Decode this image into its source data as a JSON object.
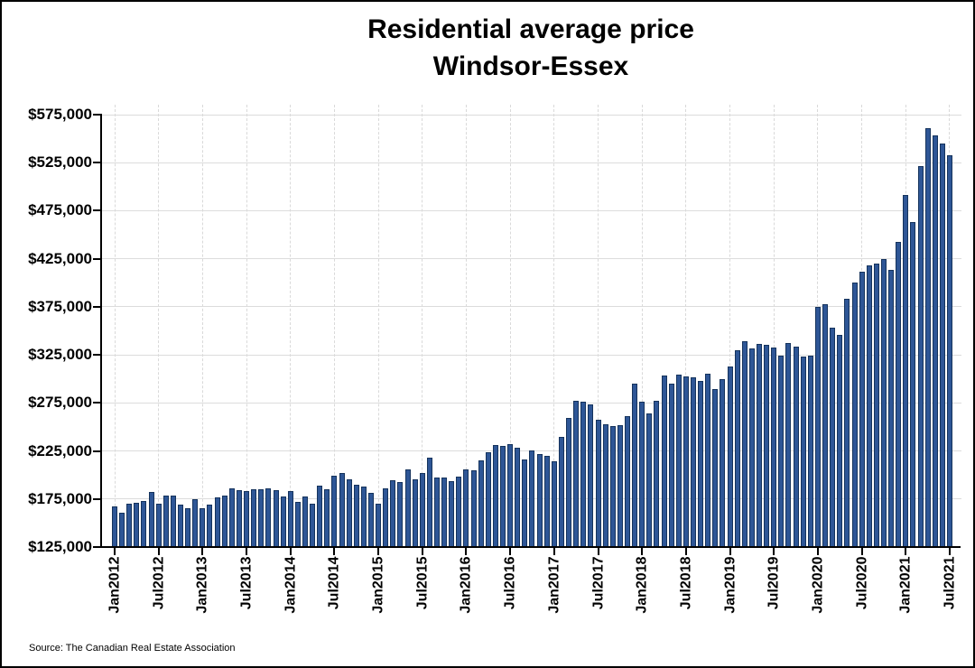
{
  "title": {
    "line1": "Residential average price",
    "line2": "Windsor-Essex"
  },
  "source_text": "Source: The Canadian Real Estate Association",
  "colors": {
    "bar_fill": "#2e5696",
    "bar_border": "#15335c",
    "gridline": "#d9d9d9",
    "axis": "#000000",
    "background": "#ffffff"
  },
  "chart_data": {
    "type": "bar",
    "title": "Residential average price Windsor-Essex",
    "xlabel": "",
    "ylabel": "",
    "x_start": "Jan 2012",
    "x_end": "Jul 2021",
    "x_frequency": "monthly",
    "x_tick_interval_months": 6,
    "x_tick_labels": [
      "Jan2012",
      "Jul2012",
      "Jan2013",
      "Jul2013",
      "Jan2014",
      "Jul2014",
      "Jan2015",
      "Jul2015",
      "Jan2016",
      "Jul2016",
      "Jan2017",
      "Jul2017",
      "Jan2018",
      "Jul2018",
      "Jan2019",
      "Jul2019",
      "Jan2020",
      "Jul2020",
      "Jan2021",
      "Jul2021"
    ],
    "y_tick_labels": [
      "$125,000",
      "$175,000",
      "$225,000",
      "$275,000",
      "$325,000",
      "$375,000",
      "$425,000",
      "$475,000",
      "$525,000",
      "$575,000"
    ],
    "ylim": [
      125000,
      575000
    ],
    "y_tick_step": 50000,
    "grid": true,
    "legend": false,
    "series": [
      {
        "name": "Residential average price",
        "values": [
          167000,
          161000,
          170000,
          171000,
          173000,
          182000,
          170500,
          178500,
          178500,
          169500,
          165000,
          174500,
          165500,
          169500,
          176500,
          178500,
          186000,
          184500,
          183500,
          185500,
          185500,
          186500,
          184500,
          177500,
          183500,
          172000,
          178000,
          170500,
          189000,
          185500,
          199500,
          202000,
          195000,
          190000,
          187500,
          181000,
          170000,
          186500,
          194500,
          193000,
          206000,
          195000,
          202000,
          218000,
          197000,
          197500,
          194000,
          198500,
          205500,
          205000,
          215000,
          224000,
          231000,
          230500,
          232000,
          228000,
          216000,
          225500,
          222000,
          219500,
          214000,
          240000,
          259000,
          277500,
          276500,
          273000,
          257000,
          252500,
          250500,
          252000,
          261000,
          295500,
          276500,
          264000,
          277000,
          303500,
          295500,
          304500,
          302500,
          301500,
          297500,
          305500,
          289000,
          299500,
          313000,
          329500,
          339500,
          331500,
          336500,
          335000,
          333000,
          324500,
          337500,
          333500,
          323500,
          324500,
          375000,
          378000,
          353000,
          346000,
          383000,
          400500,
          412000,
          418000,
          420000,
          425000,
          413000,
          443000,
          491500,
          463000,
          521500,
          560500,
          553000,
          545000,
          533000
        ]
      }
    ]
  }
}
